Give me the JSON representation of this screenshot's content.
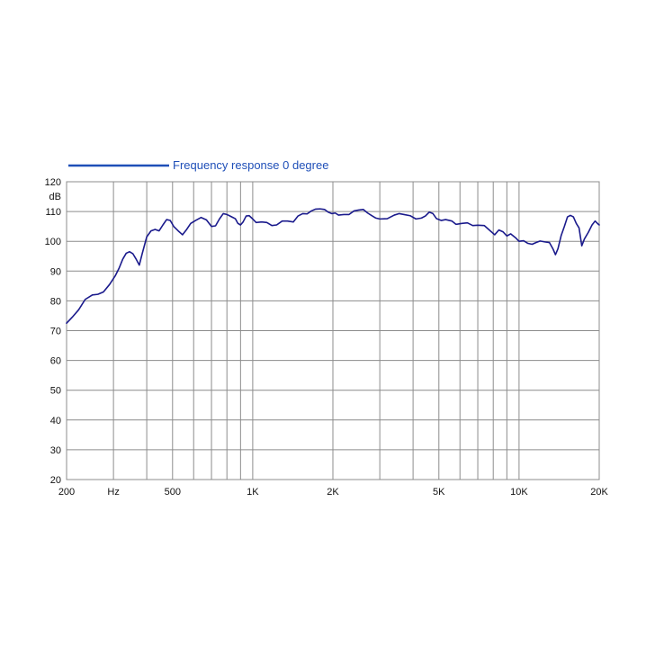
{
  "colors": {
    "curve": "#1a1a8c",
    "legend": "#1f4fb8",
    "grid": "#8c8c8c",
    "frame": "#8c8c8c"
  },
  "chart_data": {
    "type": "line",
    "title": "",
    "legend_position": "top-left",
    "ylabel": "dB",
    "x_scale": "log",
    "xlim": [
      200,
      20000
    ],
    "ylim": [
      20,
      120
    ],
    "grid": true,
    "y_ticks": [
      20,
      30,
      40,
      50,
      60,
      70,
      80,
      90,
      100,
      110,
      120
    ],
    "x_gridlines": [
      200,
      300,
      400,
      500,
      600,
      700,
      800,
      900,
      1000,
      2000,
      3000,
      4000,
      5000,
      6000,
      7000,
      8000,
      9000,
      10000,
      20000
    ],
    "x_tick_labels": [
      {
        "value": 200,
        "label": "200"
      },
      {
        "value": 300,
        "label": "Hz"
      },
      {
        "value": 500,
        "label": "500"
      },
      {
        "value": 1000,
        "label": "1K"
      },
      {
        "value": 2000,
        "label": "2K"
      },
      {
        "value": 5000,
        "label": "5K"
      },
      {
        "value": 10000,
        "label": "10K"
      },
      {
        "value": 20000,
        "label": "20K"
      }
    ],
    "series": [
      {
        "name": "Frequency response 0 degree",
        "points": [
          [
            200,
            72.5
          ],
          [
            210,
            74.5
          ],
          [
            222,
            77
          ],
          [
            235,
            80.5
          ],
          [
            250,
            82
          ],
          [
            262,
            82.2
          ],
          [
            275,
            83
          ],
          [
            290,
            85.5
          ],
          [
            305,
            88.5
          ],
          [
            315,
            91
          ],
          [
            325,
            94
          ],
          [
            335,
            96
          ],
          [
            345,
            96.5
          ],
          [
            355,
            95.8
          ],
          [
            365,
            94
          ],
          [
            375,
            92
          ],
          [
            385,
            96
          ],
          [
            400,
            101.5
          ],
          [
            415,
            103.5
          ],
          [
            430,
            104
          ],
          [
            445,
            103.5
          ],
          [
            460,
            105.5
          ],
          [
            475,
            107.3
          ],
          [
            490,
            107
          ],
          [
            505,
            105
          ],
          [
            525,
            103.5
          ],
          [
            545,
            102.2
          ],
          [
            565,
            104
          ],
          [
            585,
            106
          ],
          [
            610,
            107
          ],
          [
            640,
            108
          ],
          [
            670,
            107.2
          ],
          [
            700,
            105
          ],
          [
            725,
            105.2
          ],
          [
            750,
            107.5
          ],
          [
            775,
            109.3
          ],
          [
            800,
            109
          ],
          [
            830,
            108.3
          ],
          [
            860,
            107.6
          ],
          [
            880,
            106
          ],
          [
            900,
            105.5
          ],
          [
            920,
            106.5
          ],
          [
            945,
            108.5
          ],
          [
            970,
            108.6
          ],
          [
            1000,
            107.5
          ],
          [
            1030,
            106.3
          ],
          [
            1080,
            106.5
          ],
          [
            1130,
            106.3
          ],
          [
            1180,
            105.3
          ],
          [
            1230,
            105.5
          ],
          [
            1290,
            106.8
          ],
          [
            1350,
            106.8
          ],
          [
            1420,
            106.5
          ],
          [
            1480,
            108.5
          ],
          [
            1540,
            109.3
          ],
          [
            1600,
            109.2
          ],
          [
            1660,
            110.2
          ],
          [
            1720,
            110.8
          ],
          [
            1790,
            110.9
          ],
          [
            1860,
            110.7
          ],
          [
            1920,
            109.8
          ],
          [
            1980,
            109.3
          ],
          [
            2040,
            109.5
          ],
          [
            2100,
            108.8
          ],
          [
            2200,
            109
          ],
          [
            2300,
            109
          ],
          [
            2400,
            110.2
          ],
          [
            2500,
            110.5
          ],
          [
            2600,
            110.7
          ],
          [
            2700,
            109.5
          ],
          [
            2800,
            108.6
          ],
          [
            2900,
            107.8
          ],
          [
            3000,
            107.5
          ],
          [
            3200,
            107.6
          ],
          [
            3400,
            108.8
          ],
          [
            3550,
            109.3
          ],
          [
            3700,
            109
          ],
          [
            3900,
            108.6
          ],
          [
            4100,
            107.5
          ],
          [
            4300,
            107.8
          ],
          [
            4450,
            108.5
          ],
          [
            4600,
            109.8
          ],
          [
            4750,
            109.3
          ],
          [
            4900,
            107.6
          ],
          [
            5100,
            107
          ],
          [
            5300,
            107.3
          ],
          [
            5600,
            106.8
          ],
          [
            5800,
            105.7
          ],
          [
            6100,
            106
          ],
          [
            6400,
            106.2
          ],
          [
            6700,
            105.3
          ],
          [
            7000,
            105.4
          ],
          [
            7400,
            105.3
          ],
          [
            7800,
            103.5
          ],
          [
            8100,
            102.2
          ],
          [
            8400,
            103.8
          ],
          [
            8700,
            103.2
          ],
          [
            9000,
            101.8
          ],
          [
            9300,
            102.5
          ],
          [
            9700,
            101.2
          ],
          [
            10000,
            100
          ],
          [
            10400,
            100.2
          ],
          [
            10800,
            99.3
          ],
          [
            11200,
            99
          ],
          [
            11600,
            99.6
          ],
          [
            12000,
            100.1
          ],
          [
            12500,
            99.8
          ],
          [
            13000,
            99.6
          ],
          [
            13400,
            97.5
          ],
          [
            13700,
            95.5
          ],
          [
            14000,
            97.5
          ],
          [
            14400,
            102
          ],
          [
            14800,
            105
          ],
          [
            15200,
            108.2
          ],
          [
            15600,
            108.7
          ],
          [
            16000,
            108.2
          ],
          [
            16400,
            106
          ],
          [
            16800,
            104.5
          ],
          [
            17200,
            98.5
          ],
          [
            17600,
            100.8
          ],
          [
            18200,
            103
          ],
          [
            18800,
            105.5
          ],
          [
            19300,
            106.8
          ],
          [
            19700,
            106
          ],
          [
            20000,
            105.5
          ]
        ]
      }
    ]
  }
}
